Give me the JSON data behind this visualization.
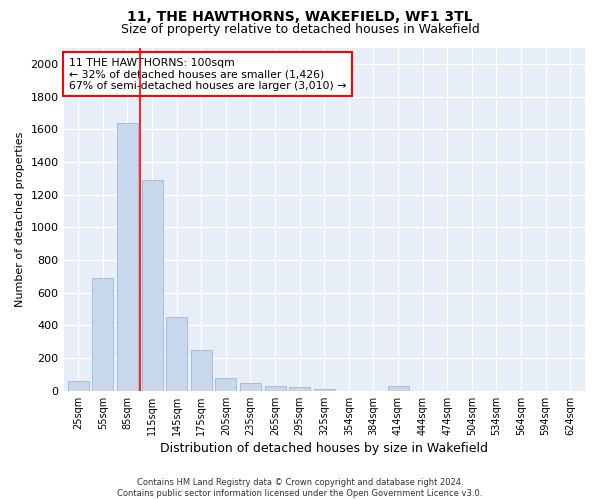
{
  "title": "11, THE HAWTHORNS, WAKEFIELD, WF1 3TL",
  "subtitle": "Size of property relative to detached houses in Wakefield",
  "xlabel": "Distribution of detached houses by size in Wakefield",
  "ylabel": "Number of detached properties",
  "categories": [
    "25sqm",
    "55sqm",
    "85sqm",
    "115sqm",
    "145sqm",
    "175sqm",
    "205sqm",
    "235sqm",
    "265sqm",
    "295sqm",
    "325sqm",
    "354sqm",
    "384sqm",
    "414sqm",
    "444sqm",
    "474sqm",
    "504sqm",
    "534sqm",
    "564sqm",
    "594sqm",
    "624sqm"
  ],
  "values": [
    60,
    690,
    1640,
    1290,
    450,
    250,
    80,
    50,
    30,
    25,
    10,
    0,
    0,
    30,
    0,
    0,
    0,
    0,
    0,
    0,
    0
  ],
  "bar_color": "#c8d8ec",
  "bar_edge_color": "#a0b8d0",
  "redline_x": 2.5,
  "annotation_text": "11 THE HAWTHORNS: 100sqm\n← 32% of detached houses are smaller (1,426)\n67% of semi-detached houses are larger (3,010) →",
  "annotation_box_color": "white",
  "annotation_box_edge": "red",
  "ylim": [
    0,
    2100
  ],
  "yticks": [
    0,
    200,
    400,
    600,
    800,
    1000,
    1200,
    1400,
    1600,
    1800,
    2000
  ],
  "footnote": "Contains HM Land Registry data © Crown copyright and database right 2024.\nContains public sector information licensed under the Open Government Licence v3.0.",
  "title_fontsize": 10,
  "subtitle_fontsize": 9,
  "xlabel_fontsize": 9,
  "ylabel_fontsize": 8,
  "bg_color": "#ffffff",
  "plot_bg_color": "#e8eef8",
  "grid_color": "white"
}
